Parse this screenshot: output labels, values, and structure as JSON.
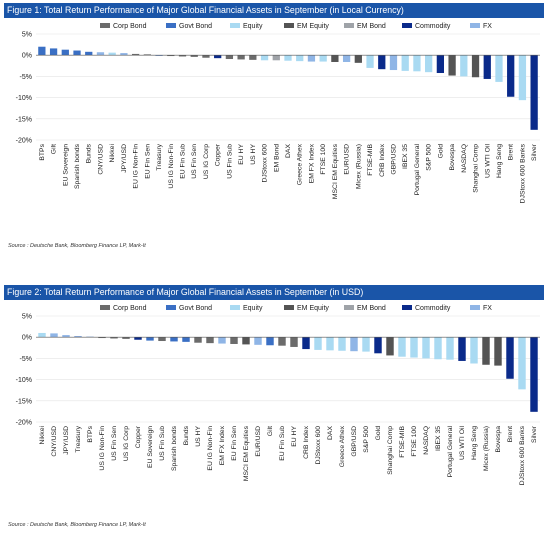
{
  "figures": [
    {
      "title": "Figure 1: Total Return Performance of Major Global Financial Assets in September (in Local Currency)",
      "source": "Source : Deutsche Bank, Bloomberg Finance LP, Mark-It",
      "chart_data": {
        "type": "bar",
        "ylim": [
          -20,
          5
        ],
        "yticks": [
          "5%",
          "0%",
          "-5%",
          "-10%",
          "-15%",
          "-20%"
        ],
        "ytick_values": [
          5,
          0,
          -5,
          -10,
          -15,
          -20
        ],
        "legend_placement": "top",
        "legend": [
          {
            "name": "Corp Bond",
            "color": "#6b6b6b"
          },
          {
            "name": "Govt Bond",
            "color": "#3a6fc4"
          },
          {
            "name": "Equity",
            "color": "#a9daf2"
          },
          {
            "name": "EM Equity",
            "color": "#545454"
          },
          {
            "name": "EM Bond",
            "color": "#9fa3a8"
          },
          {
            "name": "Commodity",
            "color": "#0a2a8a"
          },
          {
            "name": "FX",
            "color": "#8fb5e6"
          }
        ],
        "categories": [
          "BTPs",
          "Gilt",
          "EU Sovereign",
          "Spanish bonds",
          "Bunds",
          "CNY/USD",
          "Nikkei",
          "JPY/USD",
          "EU IG Non-Fin",
          "EU Fin Sen",
          "Treasury",
          "US IG Non-Fin",
          "EU Fin Sub",
          "US Fin Sen",
          "US IG Corp",
          "Copper",
          "US Fin Sub",
          "EU HY",
          "US HY",
          "DJStoxx 600",
          "EM Bond",
          "DAX",
          "Greece Athex",
          "EM FX Index",
          "FTSE 100",
          "MSCI EM Equities",
          "EUR/USD",
          "Micex (Russia)",
          "FTSE-MIB",
          "CRB Index",
          "GBP/USD",
          "IBEX 35",
          "Portugal General",
          "S&P 500",
          "Gold",
          "Bovespa",
          "NASDAQ",
          "Shanghai Comp",
          "US WTI Oil",
          "Hang Seng",
          "Brent",
          "DJStoxx 600 Banks",
          "Silver"
        ],
        "values": [
          2.0,
          1.6,
          1.3,
          1.1,
          0.8,
          0.7,
          0.6,
          0.5,
          0.3,
          0.2,
          -0.1,
          -0.2,
          -0.3,
          -0.4,
          -0.6,
          -0.7,
          -0.9,
          -1.0,
          -1.1,
          -1.2,
          -1.2,
          -1.3,
          -1.4,
          -1.5,
          -1.5,
          -1.6,
          -1.6,
          -1.8,
          -3.0,
          -3.3,
          -3.5,
          -3.7,
          -3.8,
          -4.0,
          -4.2,
          -4.8,
          -5.0,
          -5.2,
          -5.6,
          -6.3,
          -9.8,
          -10.6,
          -17.6
        ],
        "groups": [
          "Govt Bond",
          "Govt Bond",
          "Govt Bond",
          "Govt Bond",
          "Govt Bond",
          "FX",
          "Equity",
          "FX",
          "Corp Bond",
          "Corp Bond",
          "Govt Bond",
          "Corp Bond",
          "Corp Bond",
          "Corp Bond",
          "Corp Bond",
          "Commodity",
          "Corp Bond",
          "Corp Bond",
          "Corp Bond",
          "Equity",
          "EM Bond",
          "Equity",
          "Equity",
          "FX",
          "Equity",
          "EM Equity",
          "FX",
          "EM Equity",
          "Equity",
          "Commodity",
          "FX",
          "Equity",
          "Equity",
          "Equity",
          "Commodity",
          "EM Equity",
          "Equity",
          "EM Equity",
          "Commodity",
          "Equity",
          "Commodity",
          "Equity",
          "Commodity"
        ]
      }
    },
    {
      "title": "Figure 2: Total Return Performance of Major Global Financial Assets in September (in USD)",
      "source": "Source : Deutsche Bank, Bloomberg Finance LP, Mark-It",
      "chart_data": {
        "type": "bar",
        "ylim": [
          -20,
          5
        ],
        "yticks": [
          "5%",
          "0%",
          "-5%",
          "-10%",
          "-15%",
          "-20%"
        ],
        "ytick_values": [
          5,
          0,
          -5,
          -10,
          -15,
          -20
        ],
        "legend_placement": "top",
        "legend": [
          {
            "name": "Corp Bond",
            "color": "#6b6b6b"
          },
          {
            "name": "Govt Bond",
            "color": "#3a6fc4"
          },
          {
            "name": "Equity",
            "color": "#a9daf2"
          },
          {
            "name": "EM Equity",
            "color": "#545454"
          },
          {
            "name": "EM Bond",
            "color": "#9fa3a8"
          },
          {
            "name": "Commodity",
            "color": "#0a2a8a"
          },
          {
            "name": "FX",
            "color": "#8fb5e6"
          }
        ],
        "categories": [
          "Nikkei",
          "CNY/USD",
          "JPY/USD",
          "Treasury",
          "BTPs",
          "US IG Non-Fin",
          "US Fin Sen",
          "US IG Corp",
          "Copper",
          "EU Sovereign",
          "US Fin Sub",
          "Spanish bonds",
          "Bunds",
          "US HY",
          "EU IG Non-Fin",
          "EM FX Index",
          "EU Fin Sen",
          "MSCI EM Equities",
          "EUR/USD",
          "Gilt",
          "EU Fin Sub",
          "EU HY",
          "CRB Index",
          "DJStoxx 600",
          "DAX",
          "Greece Athex",
          "GBP/USD",
          "S&P 500",
          "Gold",
          "Shanghai Comp",
          "FTSE-MIB",
          "FTSE 100",
          "NASDAQ",
          "IBEX 35",
          "Portugal General",
          "US WTI Oil",
          "Hang Seng",
          "Micex (Russia)",
          "Bovespa",
          "Brent",
          "DJStoxx 600 Banks",
          "Silver"
        ],
        "values": [
          1.0,
          0.9,
          0.5,
          0.2,
          0.1,
          -0.2,
          -0.3,
          -0.4,
          -0.6,
          -0.8,
          -0.9,
          -1.0,
          -1.1,
          -1.3,
          -1.4,
          -1.5,
          -1.6,
          -1.7,
          -1.8,
          -1.9,
          -2.0,
          -2.3,
          -2.8,
          -3.0,
          -3.1,
          -3.2,
          -3.3,
          -3.4,
          -3.8,
          -4.3,
          -4.6,
          -4.8,
          -5.0,
          -5.2,
          -5.3,
          -5.6,
          -6.2,
          -6.5,
          -6.7,
          -9.8,
          -12.3,
          -17.6
        ],
        "groups": [
          "Equity",
          "FX",
          "FX",
          "Govt Bond",
          "Govt Bond",
          "Corp Bond",
          "Corp Bond",
          "Corp Bond",
          "Commodity",
          "Govt Bond",
          "Corp Bond",
          "Govt Bond",
          "Govt Bond",
          "Corp Bond",
          "Corp Bond",
          "FX",
          "Corp Bond",
          "EM Equity",
          "FX",
          "Govt Bond",
          "Corp Bond",
          "Corp Bond",
          "Commodity",
          "Equity",
          "Equity",
          "Equity",
          "FX",
          "Equity",
          "Commodity",
          "EM Equity",
          "Equity",
          "Equity",
          "Equity",
          "Equity",
          "Equity",
          "Commodity",
          "Equity",
          "EM Equity",
          "EM Equity",
          "Commodity",
          "Equity",
          "Commodity"
        ]
      }
    }
  ]
}
